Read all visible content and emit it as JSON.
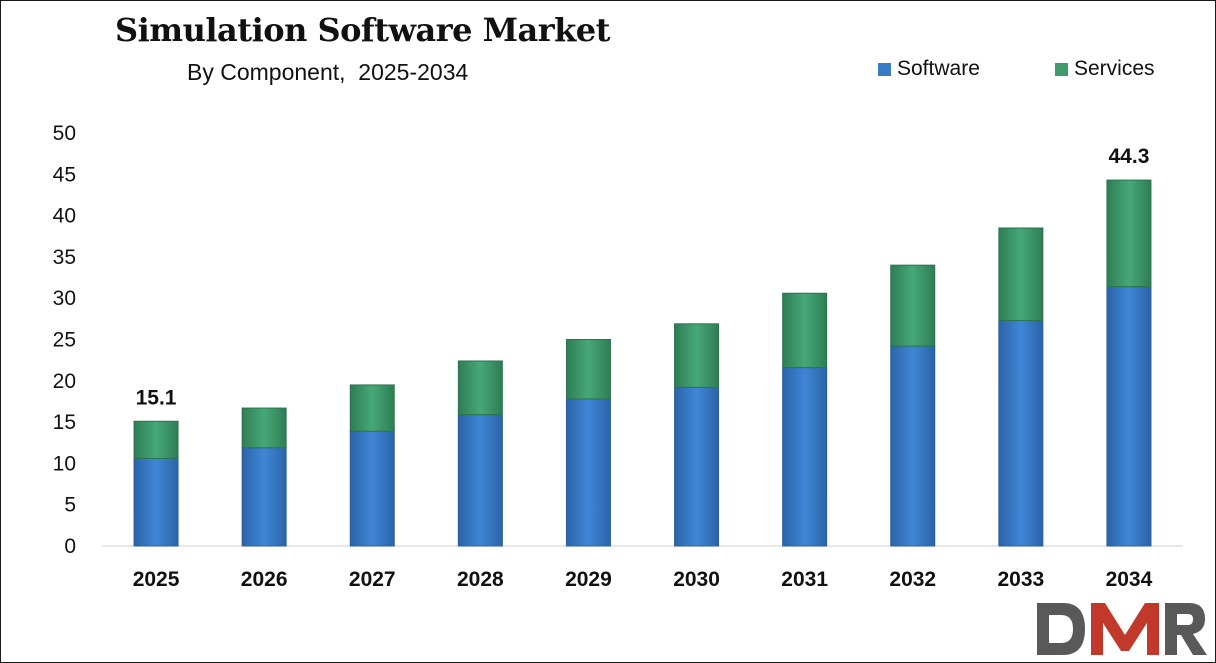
{
  "chart_data": {
    "type": "bar",
    "stacked": true,
    "title": "Simulation Software Market",
    "subtitle": "By Component,  2025-2034",
    "categories": [
      "2025",
      "2026",
      "2027",
      "2028",
      "2029",
      "2030",
      "2031",
      "2032",
      "2033",
      "2034"
    ],
    "series": [
      {
        "name": "Software",
        "color": "#3a7bc8",
        "values": [
          10.6,
          11.9,
          13.9,
          15.9,
          17.8,
          19.2,
          21.6,
          24.2,
          27.3,
          31.4
        ]
      },
      {
        "name": "Services",
        "color": "#3f9a6d",
        "values": [
          4.5,
          4.8,
          5.6,
          6.5,
          7.2,
          7.7,
          9.0,
          9.8,
          11.2,
          12.9
        ]
      }
    ],
    "totals": [
      15.1,
      16.7,
      19.5,
      22.4,
      25.0,
      26.9,
      30.6,
      34.0,
      38.5,
      44.3
    ],
    "data_labels": [
      {
        "category": "2025",
        "text": "15.1"
      },
      {
        "category": "2034",
        "text": "44.3"
      }
    ],
    "yticks": [
      "0",
      "5",
      "10",
      "15",
      "20",
      "25",
      "30",
      "35",
      "40",
      "45",
      "50"
    ],
    "ylim": [
      0,
      50
    ],
    "xlabel": "",
    "ylabel": "",
    "grid": false,
    "legend_position": "top-right"
  },
  "logo": {
    "text": "DMR",
    "colors": [
      "#595959",
      "#c0392b",
      "#595959"
    ]
  }
}
